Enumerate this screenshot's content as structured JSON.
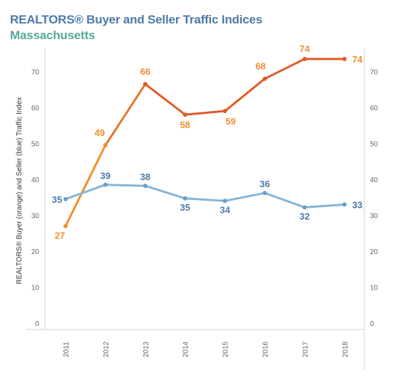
{
  "title": "REALTORS® Buyer and Seller Traffic Indices",
  "subtitle": "Massachusetts",
  "colors": {
    "title": "#4e79a7",
    "subtitle": "#59a89c",
    "buyer_line": "#e15a26",
    "buyer_label": "#f28e2b",
    "seller_line": "#86b4d8",
    "seller_label": "#4e79a7"
  },
  "chart_data": {
    "type": "line",
    "x": [
      "2011",
      "2012",
      "2013",
      "2014",
      "2015",
      "2016",
      "2017",
      "2018"
    ],
    "series": [
      {
        "values": [
          27,
          49.5,
          66.5,
          58,
          59,
          68,
          73.5,
          73.5
        ],
        "labels": [
          "27",
          "49",
          "66",
          "58",
          "59",
          "68",
          "74",
          "74"
        ]
      },
      {
        "values": [
          34.5,
          38.5,
          38.2,
          34.7,
          34,
          36.2,
          32.2,
          33
        ],
        "labels": [
          "35",
          "39",
          "38",
          "35",
          "34",
          "36",
          "32",
          "33"
        ]
      }
    ],
    "ylabel": "REALTORS® Buyer (orange) and Seller (blue) Traffic Index",
    "xlabel": "",
    "ylim": [
      0,
      75
    ],
    "y_ticks": [
      0,
      10,
      20,
      30,
      40,
      50,
      60,
      70
    ],
    "grid": false,
    "legend": "none"
  }
}
